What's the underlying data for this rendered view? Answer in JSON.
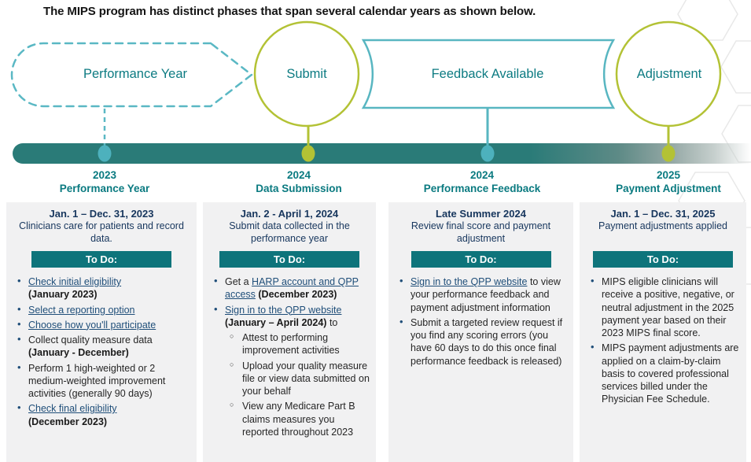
{
  "title": "The MIPS program has distinct phases that span several calendar years as shown below.",
  "timeline": {
    "phases": [
      {
        "label": "Performance Year",
        "shape": "dashed-arrow"
      },
      {
        "label": "Submit",
        "shape": "circle"
      },
      {
        "label": "Feedback Available",
        "shape": "banner"
      },
      {
        "label": "Adjustment",
        "shape": "circle"
      }
    ],
    "milestones": [
      {
        "year": "2023",
        "name": "Performance Year"
      },
      {
        "year": "2024",
        "name": "Data Submission"
      },
      {
        "year": "2024",
        "name": "Performance Feedback"
      },
      {
        "year": "2025",
        "name": "Payment Adjustment"
      }
    ]
  },
  "colors": {
    "teal_dark": "#0e747b",
    "teal_bar": "#2a7b78",
    "teal_light": "#58b6c1",
    "olive": "#b3c235",
    "navy": "#17365d",
    "link": "#1f4e79"
  },
  "columns": [
    {
      "date": "Jan. 1 – Dec. 31, 2023",
      "description": "Clinicians care for patients and record data.",
      "todo_label": "To Do:",
      "items": [
        {
          "level": 1,
          "segments": [
            {
              "t": "Check initial eligibility",
              "s": "link"
            },
            {
              "br": true
            },
            {
              "t": "(January 2023)",
              "s": "bold"
            }
          ]
        },
        {
          "level": 1,
          "segments": [
            {
              "t": "Select a reporting option",
              "s": "link"
            }
          ]
        },
        {
          "level": 1,
          "segments": [
            {
              "t": "Choose how you'll participate",
              "s": "link"
            }
          ]
        },
        {
          "level": 1,
          "segments": [
            {
              "t": "Collect quality measure data",
              "s": "plain"
            },
            {
              "br": true
            },
            {
              "t": "(January - December)",
              "s": "bold"
            }
          ]
        },
        {
          "level": 1,
          "segments": [
            {
              "t": "Perform 1 high-weighted or 2 medium-weighted improvement activities (generally 90 days)",
              "s": "plain"
            }
          ]
        },
        {
          "level": 1,
          "segments": [
            {
              "t": "Check final eligibility",
              "s": "link"
            },
            {
              "br": true
            },
            {
              "t": "(December 2023)",
              "s": "bold"
            }
          ]
        }
      ]
    },
    {
      "date": "Jan. 2 -  April 1, 2024",
      "description": "Submit data collected in the performance year",
      "todo_label": "To Do:",
      "items": [
        {
          "level": 1,
          "segments": [
            {
              "t": "Get a ",
              "s": "plain"
            },
            {
              "t": "HARP account and QPP access",
              "s": "link"
            },
            {
              "t": " ",
              "s": "plain"
            },
            {
              "t": "(December 2023)",
              "s": "bold"
            }
          ]
        },
        {
          "level": 1,
          "segments": [
            {
              "t": "Sign in to the QPP website",
              "s": "link"
            },
            {
              "br": true
            },
            {
              "t": "(January – April 2024)",
              "s": "bold"
            },
            {
              "t": " to",
              "s": "plain"
            }
          ]
        },
        {
          "level": 2,
          "segments": [
            {
              "t": "Attest to performing improvement activities",
              "s": "plain"
            }
          ]
        },
        {
          "level": 2,
          "segments": [
            {
              "t": "Upload your quality measure file or view data submitted on your behalf",
              "s": "plain"
            }
          ]
        },
        {
          "level": 2,
          "segments": [
            {
              "t": "View any Medicare Part B claims measures you reported throughout 2023",
              "s": "plain"
            }
          ]
        }
      ]
    },
    {
      "date": "Late Summer 2024",
      "description": "Review final score and payment adjustment",
      "todo_label": "To Do:",
      "items": [
        {
          "level": 1,
          "segments": [
            {
              "t": "Sign in to the QPP website",
              "s": "link"
            },
            {
              "t": " to view your performance feedback and payment adjustment information",
              "s": "plain"
            }
          ]
        },
        {
          "level": 1,
          "segments": [
            {
              "t": "Submit a targeted review request if you find any scoring errors (you have 60 days to do this once final performance feedback is released)",
              "s": "plain"
            }
          ]
        }
      ]
    },
    {
      "date": "Jan. 1 – Dec. 31, 2025",
      "description": "Payment adjustments applied",
      "todo_label": "To Do:",
      "items": [
        {
          "level": 1,
          "segments": [
            {
              "t": "MIPS eligible clinicians will receive a positive, negative, or neutral adjustment in the 2025 payment year based on their 2023 MIPS final score.",
              "s": "plain"
            }
          ]
        },
        {
          "level": 1,
          "segments": [
            {
              "t": "MIPS payment adjustments are applied on a claim-by-claim basis to covered professional services billed under the Physician Fee Schedule.",
              "s": "plain"
            }
          ]
        }
      ]
    }
  ]
}
